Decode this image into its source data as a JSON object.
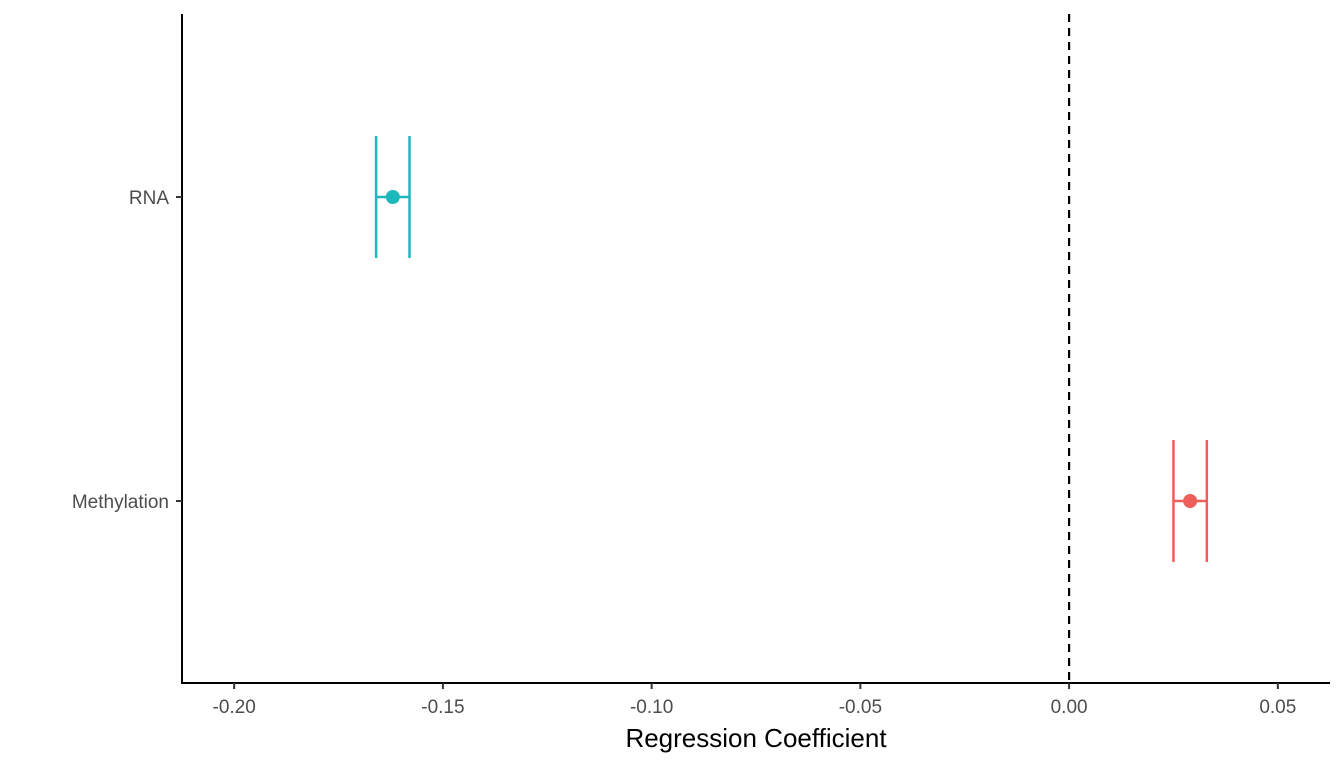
{
  "chart_data": {
    "type": "scatter",
    "title": "",
    "xlabel": "Regression Coefficient",
    "ylabel": "",
    "xlim": [
      -0.2125,
      0.0625
    ],
    "x_ticks": [
      -0.2,
      -0.15,
      -0.1,
      -0.05,
      0.0,
      0.05
    ],
    "x_tick_labels": [
      "-0.20",
      "-0.15",
      "-0.10",
      "-0.05",
      "0.00",
      "0.05"
    ],
    "categories": [
      "RNA",
      "Methylation"
    ],
    "points": [
      {
        "category": "RNA",
        "estimate": -0.162,
        "ci_low": -0.166,
        "ci_high": -0.158,
        "color": "#1CB8BC"
      },
      {
        "category": "Methylation",
        "estimate": 0.029,
        "ci_low": 0.025,
        "ci_high": 0.033,
        "color": "#EE5E5B"
      }
    ],
    "reference_line": {
      "x": 0.0,
      "style": "dashed",
      "color": "#000000"
    },
    "legend": "none",
    "grid": false
  }
}
